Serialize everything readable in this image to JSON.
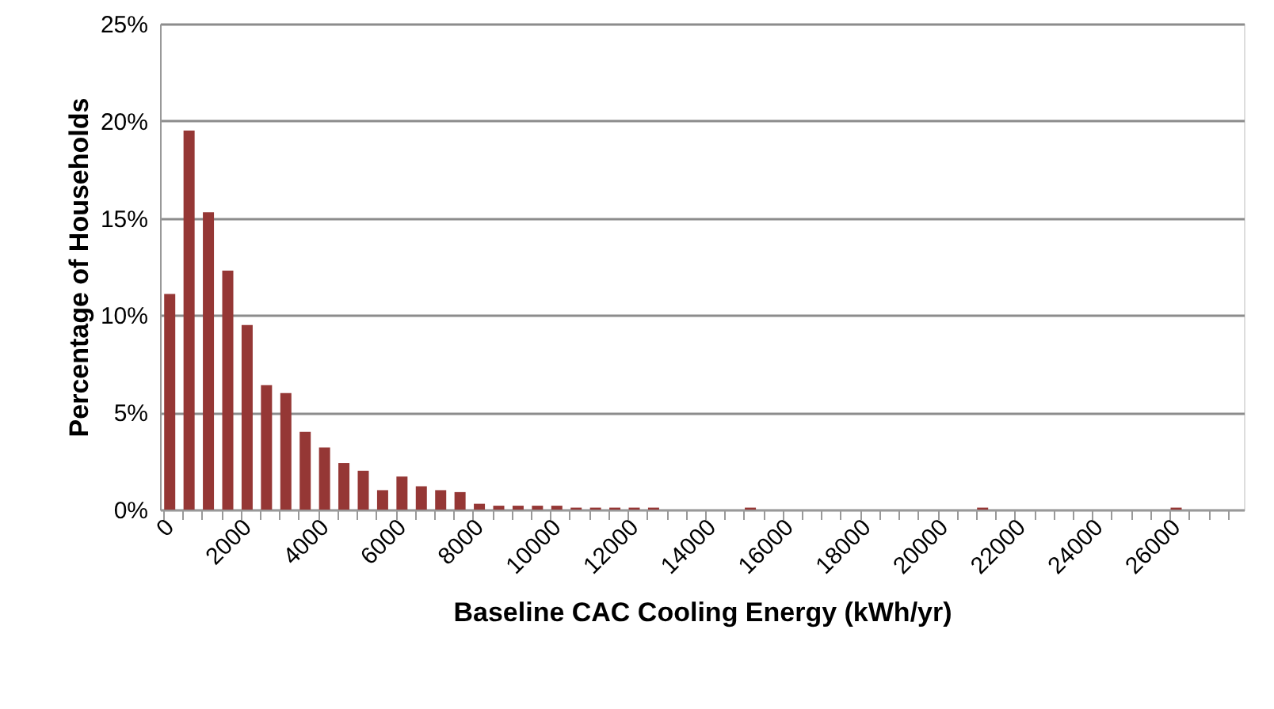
{
  "chart_data": {
    "type": "bar",
    "xlabel": "Baseline CAC Cooling Energy (kWh/yr)",
    "ylabel": "Percentage of Households",
    "categories": [
      "0",
      null,
      null,
      null,
      "2000",
      null,
      null,
      null,
      "4000",
      null,
      null,
      null,
      "6000",
      null,
      null,
      null,
      "8000",
      null,
      null,
      null,
      "10000",
      null,
      null,
      null,
      "12000",
      null,
      null,
      null,
      "14000",
      null,
      null,
      null,
      "16000",
      null,
      null,
      null,
      "18000",
      null,
      null,
      null,
      "20000",
      null,
      null,
      null,
      "22000",
      null,
      null,
      null,
      "24000",
      null,
      null,
      null,
      "26000",
      null,
      null,
      null
    ],
    "values": [
      11.1,
      19.5,
      15.3,
      12.3,
      9.5,
      6.4,
      6.0,
      4.0,
      3.2,
      2.4,
      2.0,
      1.0,
      1.7,
      1.2,
      1.0,
      0.9,
      0.3,
      0.2,
      0.2,
      0.2,
      0.2,
      0.1,
      0.1,
      0.1,
      0.1,
      0.1,
      0,
      0,
      0,
      0,
      0.1,
      0,
      0,
      0,
      0,
      0,
      0,
      0,
      0,
      0,
      0,
      0,
      0.1,
      0,
      0,
      0,
      0,
      0,
      0,
      0,
      0,
      0,
      0.1,
      0,
      0,
      0
    ],
    "color": "#953735",
    "ylim": [
      0,
      25
    ],
    "yticks": [
      {
        "value": 0,
        "label": "0%"
      },
      {
        "value": 5,
        "label": "5%"
      },
      {
        "value": 10,
        "label": "10%"
      },
      {
        "value": 15,
        "label": "15%"
      },
      {
        "value": 20,
        "label": "20%"
      },
      {
        "value": 25,
        "label": "25%"
      }
    ],
    "grid": "y"
  }
}
